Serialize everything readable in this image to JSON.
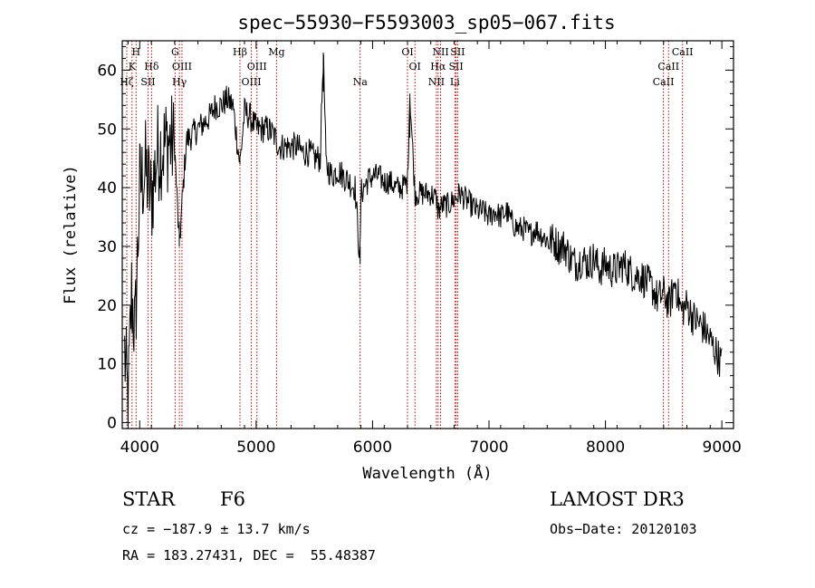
{
  "chart_data": {
    "type": "line",
    "title": "spec−55930−F5593003_sp05−067.fits",
    "xlabel": "Wavelength (Å)",
    "ylabel": "Flux (relative)",
    "xlim": [
      3850,
      9100
    ],
    "ylim": [
      -1,
      65
    ],
    "xticks": [
      4000,
      5000,
      6000,
      7000,
      8000,
      9000
    ],
    "yticks": [
      0,
      10,
      20,
      30,
      40,
      50,
      60
    ],
    "line_color": "#000000",
    "marker_color": "#cc0000",
    "series": [
      {
        "name": "flux",
        "x": [
          3870,
          3900,
          3930,
          3960,
          4000,
          4050,
          4100,
          4150,
          4200,
          4250,
          4300,
          4340,
          4400,
          4450,
          4500,
          4550,
          4600,
          4650,
          4700,
          4750,
          4800,
          4861,
          4900,
          4950,
          5000,
          5050,
          5100,
          5150,
          5200,
          5250,
          5300,
          5350,
          5400,
          5450,
          5500,
          5550,
          5577,
          5600,
          5650,
          5700,
          5750,
          5800,
          5850,
          5893,
          5900,
          5950,
          6000,
          6050,
          6100,
          6150,
          6200,
          6250,
          6300,
          6320,
          6364,
          6400,
          6450,
          6500,
          6550,
          6563,
          6600,
          6650,
          6700,
          6750,
          6800,
          6850,
          6900,
          6950,
          7000,
          7050,
          7100,
          7150,
          7200,
          7250,
          7300,
          7350,
          7400,
          7450,
          7500,
          7550,
          7600,
          7650,
          7700,
          7750,
          7800,
          7850,
          7900,
          7950,
          8000,
          8050,
          8100,
          8150,
          8200,
          8250,
          8300,
          8350,
          8400,
          8450,
          8500,
          8550,
          8600,
          8650,
          8700,
          8750,
          8800,
          8850,
          8900,
          8950,
          9000
        ],
        "values": [
          12,
          3,
          22,
          15,
          40,
          43,
          38,
          46,
          47,
          48,
          47,
          30,
          48,
          49,
          50,
          51,
          52,
          54,
          54,
          55,
          54,
          44,
          53,
          52,
          50,
          50,
          50,
          49,
          47,
          47,
          47,
          47,
          46,
          46,
          45,
          45,
          63,
          44,
          42,
          43,
          42,
          41,
          40,
          27,
          39,
          41,
          42,
          42,
          41,
          41,
          40,
          40,
          41,
          56,
          39,
          39,
          39,
          39,
          38,
          36,
          37,
          37,
          38,
          39,
          38,
          37,
          36,
          36,
          35,
          36,
          35,
          36,
          34,
          33,
          33,
          32,
          33,
          32,
          31,
          31,
          30,
          30,
          28,
          27,
          28,
          27,
          28,
          26,
          27,
          26,
          26,
          27,
          26,
          25,
          25,
          24,
          23,
          21,
          22,
          20,
          24,
          19,
          20,
          18,
          17,
          16,
          14,
          12,
          10
        ]
      }
    ],
    "lines": [
      {
        "wave": 3889,
        "label": "Hζ",
        "row": 3
      },
      {
        "wave": 3934,
        "label": "K",
        "row": 2
      },
      {
        "wave": 3969,
        "label": "H",
        "row": 1
      },
      {
        "wave": 4072,
        "label": "SII",
        "row": 3
      },
      {
        "wave": 4102,
        "label": "Hδ",
        "row": 2
      },
      {
        "wave": 4304,
        "label": "G",
        "row": 1
      },
      {
        "wave": 4341,
        "label": "Hγ",
        "row": 3
      },
      {
        "wave": 4363,
        "label": "OIII",
        "row": 2
      },
      {
        "wave": 4861,
        "label": "Hβ",
        "row": 1
      },
      {
        "wave": 4959,
        "label": "OIII",
        "row": 3
      },
      {
        "wave": 5007,
        "label": "OIII",
        "row": 2
      },
      {
        "wave": 5175,
        "label": "Mg",
        "row": 1
      },
      {
        "wave": 5893,
        "label": "Na",
        "row": 3
      },
      {
        "wave": 6300,
        "label": "OI",
        "row": 1
      },
      {
        "wave": 6364,
        "label": "OI",
        "row": 2
      },
      {
        "wave": 6548,
        "label": "NII",
        "row": 3
      },
      {
        "wave": 6563,
        "label": "Hα",
        "row": 2
      },
      {
        "wave": 6584,
        "label": "NII",
        "row": 1
      },
      {
        "wave": 6707,
        "label": "Li",
        "row": 3
      },
      {
        "wave": 6717,
        "label": "SII",
        "row": 2
      },
      {
        "wave": 6731,
        "label": "SII",
        "row": 1
      },
      {
        "wave": 8498,
        "label": "CaII",
        "row": 3
      },
      {
        "wave": 8542,
        "label": "CaII",
        "row": 2
      },
      {
        "wave": 8662,
        "label": "CaII",
        "row": 1
      }
    ]
  },
  "info": {
    "class_label": "STAR",
    "subclass": "F6",
    "survey": "LAMOST DR3",
    "cz": "cz = −187.9 ± 13.7 km/s",
    "obs_date": "Obs−Date: 20120103",
    "coords": "RA = 183.27431, DEC =  55.48387"
  }
}
